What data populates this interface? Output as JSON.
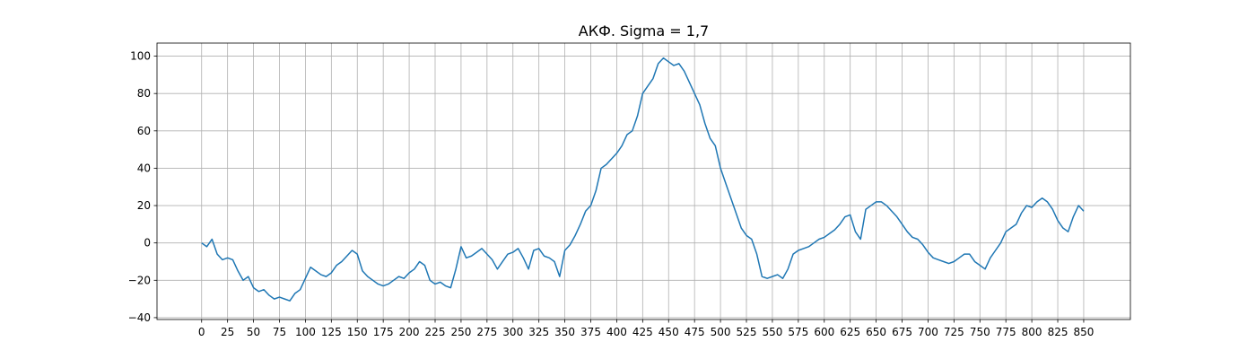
{
  "chart_data": {
    "type": "line",
    "title": "АКФ. Sigma = 1,7",
    "xlabel": "",
    "ylabel": "",
    "xlim": [
      -43,
      895
    ],
    "ylim": [
      -41,
      107
    ],
    "grid": true,
    "x_ticks": [
      0,
      25,
      50,
      75,
      100,
      125,
      150,
      175,
      200,
      225,
      250,
      275,
      300,
      325,
      350,
      375,
      400,
      425,
      450,
      475,
      500,
      525,
      550,
      575,
      600,
      625,
      650,
      675,
      700,
      725,
      750,
      775,
      800,
      825,
      850
    ],
    "y_ticks": [
      -40,
      -20,
      0,
      20,
      40,
      60,
      80,
      100
    ],
    "series": [
      {
        "color": "#1f77b4",
        "x_step": 5,
        "values": [
          0,
          -2,
          2,
          -6,
          -9,
          -8,
          -9,
          -15,
          -20,
          -18,
          -24,
          -26,
          -25,
          -28,
          -30,
          -29,
          -30,
          -31,
          -27,
          -25,
          -19,
          -13,
          -15,
          -17,
          -18,
          -16,
          -12,
          -10,
          -7,
          -4,
          -6,
          -15,
          -18,
          -20,
          -22,
          -23,
          -22,
          -20,
          -18,
          -19,
          -16,
          -14,
          -10,
          -12,
          -20,
          -22,
          -21,
          -23,
          -24,
          -14,
          -2,
          -8,
          -7,
          -5,
          -3,
          -6,
          -9,
          -14,
          -10,
          -6,
          -5,
          -3,
          -8,
          -14,
          -4,
          -3,
          -7,
          -8,
          -10,
          -18,
          -4,
          -1,
          4,
          10,
          17,
          20,
          28,
          40,
          42,
          45,
          48,
          52,
          58,
          60,
          68,
          80,
          84,
          88,
          96,
          99,
          97,
          95,
          96,
          92,
          86,
          80,
          74,
          64,
          56,
          52,
          40,
          32,
          24,
          16,
          8,
          4,
          2,
          -6,
          -18,
          -19,
          -18,
          -17,
          -19,
          -14,
          -6,
          -4,
          -3,
          -2,
          0,
          2,
          3,
          5,
          7,
          10,
          14,
          15,
          6,
          2,
          18,
          20,
          22,
          22,
          20,
          17,
          14,
          10,
          6,
          3,
          2,
          -1,
          -5,
          -8,
          -9,
          -10,
          -11,
          -10,
          -8,
          -6,
          -6,
          -10,
          -12,
          -14,
          -8,
          -4,
          0,
          6,
          8,
          10,
          16,
          20,
          19,
          22,
          24,
          22,
          18,
          12,
          8,
          6,
          14,
          20,
          17
        ]
      }
    ]
  }
}
